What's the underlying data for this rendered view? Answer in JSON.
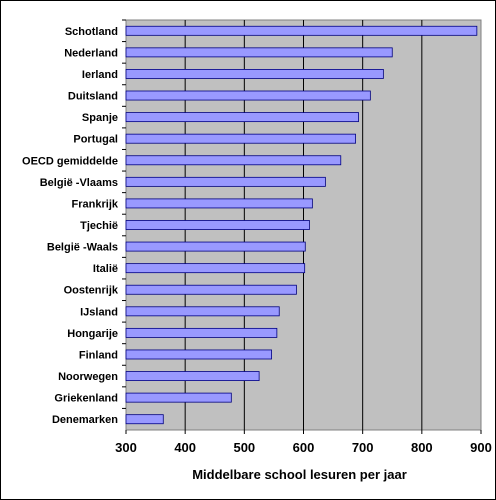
{
  "chart_data": {
    "type": "bar",
    "orientation": "horizontal",
    "title": "",
    "xlabel": "Middelbare school lesuren per jaar",
    "ylabel": "",
    "xlim": [
      300,
      900
    ],
    "x_ticks": [
      300,
      400,
      500,
      600,
      700,
      800,
      900
    ],
    "grid": "vertical",
    "legend": "none",
    "plot_background": "#c0c0c0",
    "bar_color": "#9999ff",
    "bar_edge_color": "#000080",
    "categories": [
      "Schotland",
      "Nederland",
      "Ierland",
      "Duitsland",
      "Spanje",
      "Portugal",
      "OECD gemiddelde",
      "België -Vlaams",
      "Frankrijk",
      "Tjechië",
      "België -Waals",
      "Italië",
      "Oostenrijk",
      "IJsland",
      "Hongarije",
      "Finland",
      "Noorwegen",
      "Griekenland",
      "Denemarken"
    ],
    "values": [
      893,
      750,
      735,
      713,
      693,
      688,
      663,
      637,
      615,
      610,
      603,
      602,
      588,
      559,
      555,
      546,
      525,
      478,
      363
    ]
  }
}
